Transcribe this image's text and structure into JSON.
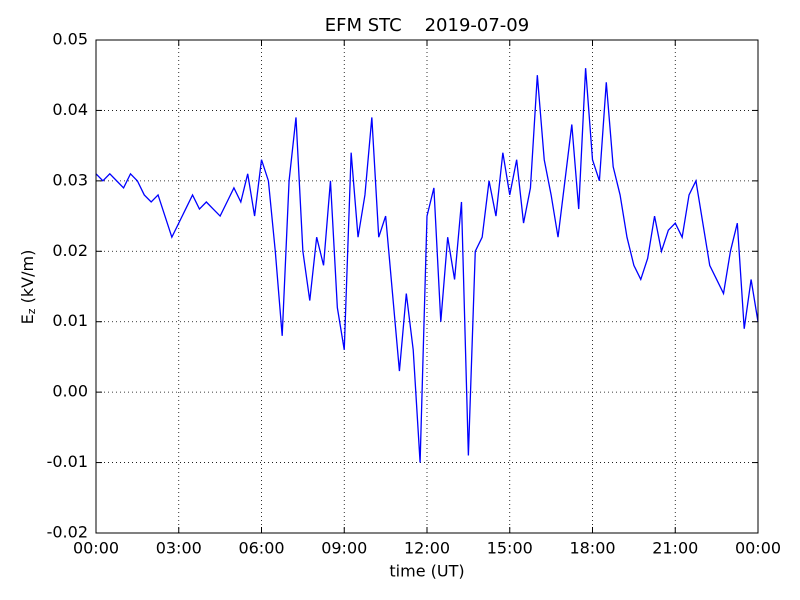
{
  "chart_data": {
    "type": "line",
    "title": "EFM STC    2019-07-09",
    "xlabel": "time (UT)",
    "ylabel": {
      "main": "E",
      "sub": "z",
      "unit": " (kV/m)"
    },
    "xlim": [
      0,
      24
    ],
    "xticks": [
      {
        "value": 0,
        "label": "00:00"
      },
      {
        "value": 3,
        "label": "03:00"
      },
      {
        "value": 6,
        "label": "06:00"
      },
      {
        "value": 9,
        "label": "09:00"
      },
      {
        "value": 12,
        "label": "12:00"
      },
      {
        "value": 15,
        "label": "15:00"
      },
      {
        "value": 18,
        "label": "18:00"
      },
      {
        "value": 21,
        "label": "21:00"
      },
      {
        "value": 24,
        "label": "00:00"
      }
    ],
    "ylim": [
      -0.02,
      0.05
    ],
    "yticks": [
      -0.02,
      -0.01,
      {
        "value": 0,
        "label": "0.00"
      },
      0.01,
      0.02,
      0.03,
      0.04,
      0.05
    ],
    "grid": true,
    "x": [
      0,
      0.25,
      0.5,
      0.75,
      1,
      1.25,
      1.5,
      1.75,
      2,
      2.25,
      2.5,
      2.75,
      3,
      3.25,
      3.5,
      3.75,
      4,
      4.25,
      4.5,
      4.75,
      5,
      5.25,
      5.5,
      5.75,
      6,
      6.25,
      6.5,
      6.75,
      7,
      7.25,
      7.5,
      7.75,
      8,
      8.25,
      8.5,
      8.75,
      9,
      9.25,
      9.5,
      9.75,
      10,
      10.25,
      10.5,
      10.75,
      11,
      11.25,
      11.5,
      11.75,
      12,
      12.25,
      12.5,
      12.75,
      13,
      13.25,
      13.5,
      13.75,
      14,
      14.25,
      14.5,
      14.75,
      15,
      15.25,
      15.5,
      15.75,
      16,
      16.25,
      16.5,
      16.75,
      17,
      17.25,
      17.5,
      17.75,
      18,
      18.25,
      18.5,
      18.75,
      19,
      19.25,
      19.5,
      19.75,
      20,
      20.25,
      20.5,
      20.75,
      21,
      21.25,
      21.5,
      21.75,
      22,
      22.25,
      22.5,
      22.75,
      23,
      23.25,
      23.5,
      23.75,
      24
    ],
    "series": [
      {
        "color": "#0000ff",
        "values": [
          0.031,
          0.03,
          0.031,
          0.03,
          0.029,
          0.031,
          0.03,
          0.028,
          0.027,
          0.028,
          0.025,
          0.022,
          0.024,
          0.026,
          0.028,
          0.026,
          0.027,
          0.026,
          0.025,
          0.027,
          0.029,
          0.027,
          0.031,
          0.025,
          0.033,
          0.03,
          0.02,
          0.008,
          0.03,
          0.039,
          0.02,
          0.013,
          0.022,
          0.018,
          0.03,
          0.012,
          0.006,
          0.034,
          0.022,
          0.028,
          0.039,
          0.022,
          0.025,
          0.014,
          0.003,
          0.014,
          0.006,
          -0.01,
          0.025,
          0.029,
          0.01,
          0.022,
          0.016,
          0.027,
          -0.009,
          0.02,
          0.022,
          0.03,
          0.025,
          0.034,
          0.028,
          0.033,
          0.024,
          0.029,
          0.045,
          0.033,
          0.028,
          0.022,
          0.03,
          0.038,
          0.026,
          0.046,
          0.033,
          0.03,
          0.044,
          0.032,
          0.028,
          0.022,
          0.018,
          0.016,
          0.019,
          0.025,
          0.02,
          0.023,
          0.024,
          0.022,
          0.028,
          0.03,
          0.024,
          0.018,
          0.016,
          0.014,
          0.02,
          0.024,
          0.009,
          0.016,
          0.01
        ]
      }
    ]
  }
}
